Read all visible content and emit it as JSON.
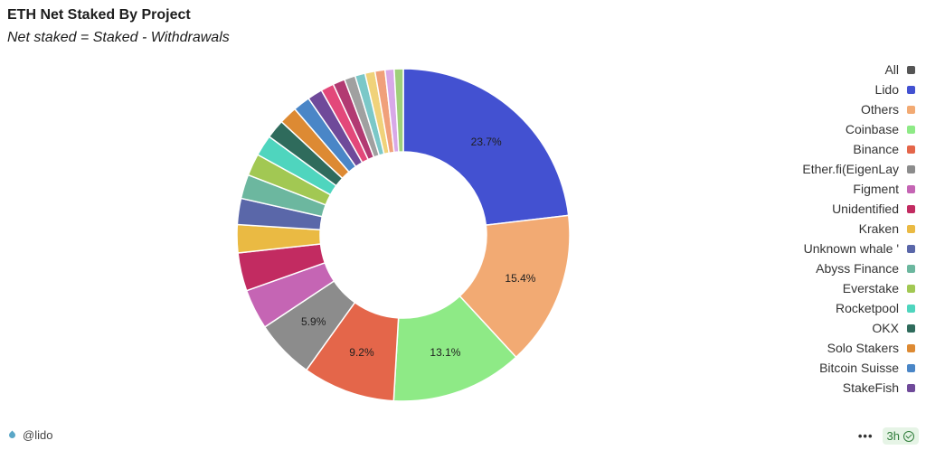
{
  "header": {
    "title": "ETH Net Staked By Project",
    "subtitle": "Net staked = Staked - Withdrawals"
  },
  "footer": {
    "handle": "@lido",
    "more": "•••",
    "refresh": "3h"
  },
  "legend": [
    {
      "label": "All",
      "color": "#555555"
    },
    {
      "label": "Lido",
      "color": "#4351d1"
    },
    {
      "label": "Others",
      "color": "#f2aa73"
    },
    {
      "label": "Coinbase",
      "color": "#8eea86"
    },
    {
      "label": "Binance",
      "color": "#e4664a"
    },
    {
      "label": "Ether.fi(EigenLay",
      "color": "#8c8c8c"
    },
    {
      "label": "Figment",
      "color": "#c565b4"
    },
    {
      "label": "Unidentified",
      "color": "#c22b61"
    },
    {
      "label": "Kraken",
      "color": "#eaba43"
    },
    {
      "label": "Unknown whale '",
      "color": "#5a67a9"
    },
    {
      "label": "Abyss Finance",
      "color": "#6cb79f"
    },
    {
      "label": "Everstake",
      "color": "#a2c853"
    },
    {
      "label": "Rocketpool",
      "color": "#4fd5be"
    },
    {
      "label": "OKX",
      "color": "#2f6b5c"
    },
    {
      "label": "Solo Stakers",
      "color": "#dd8a33"
    },
    {
      "label": "Bitcoin Suisse",
      "color": "#4a86c7"
    },
    {
      "label": "StakeFish",
      "color": "#6f4a9a"
    }
  ],
  "chart_data": {
    "type": "pie",
    "title": "ETH Net Staked By Project",
    "subtitle": "Net staked = Staked - Withdrawals",
    "unit": "%",
    "legend_position": "right",
    "slices": [
      {
        "label": "Lido",
        "value": 23.7,
        "color": "#4351d1",
        "show_label": "23.7%"
      },
      {
        "label": "Others",
        "value": 15.4,
        "color": "#f2aa73",
        "show_label": "15.4%"
      },
      {
        "label": "Coinbase",
        "value": 13.1,
        "color": "#8eea86",
        "show_label": "13.1%"
      },
      {
        "label": "Binance",
        "value": 9.2,
        "color": "#e4664a",
        "show_label": "9.2%"
      },
      {
        "label": "Ether.fi(EigenLay",
        "value": 5.9,
        "color": "#8c8c8c",
        "show_label": "5.9%"
      },
      {
        "label": "Figment",
        "value": 4.0,
        "color": "#c565b4"
      },
      {
        "label": "Unidentified",
        "value": 3.8,
        "color": "#c22b61"
      },
      {
        "label": "Kraken",
        "value": 2.8,
        "color": "#eaba43"
      },
      {
        "label": "Unknown whale '",
        "value": 2.6,
        "color": "#5a67a9"
      },
      {
        "label": "Abyss Finance",
        "value": 2.4,
        "color": "#6cb79f"
      },
      {
        "label": "Everstake",
        "value": 2.2,
        "color": "#a2c853"
      },
      {
        "label": "Rocketpool",
        "value": 2.1,
        "color": "#4fd5be"
      },
      {
        "label": "OKX",
        "value": 1.9,
        "color": "#2f6b5c"
      },
      {
        "label": "Solo Stakers",
        "value": 1.8,
        "color": "#dd8a33"
      },
      {
        "label": "Bitcoin Suisse",
        "value": 1.7,
        "color": "#4a86c7"
      },
      {
        "label": "StakeFish",
        "value": 1.5,
        "color": "#6f4a9a"
      },
      {
        "label": "",
        "value": 1.3,
        "color": "#e3487a"
      },
      {
        "label": "",
        "value": 1.2,
        "color": "#b23a72"
      },
      {
        "label": "",
        "value": 1.1,
        "color": "#a0a0a0"
      },
      {
        "label": "",
        "value": 1.0,
        "color": "#7bc8c8"
      },
      {
        "label": "",
        "value": 1.0,
        "color": "#f0d27a"
      },
      {
        "label": "",
        "value": 1.0,
        "color": "#f0a07a"
      },
      {
        "label": "",
        "value": 0.9,
        "color": "#d8a8e8"
      },
      {
        "label": "",
        "value": 0.9,
        "color": "#9fd07a"
      }
    ]
  }
}
